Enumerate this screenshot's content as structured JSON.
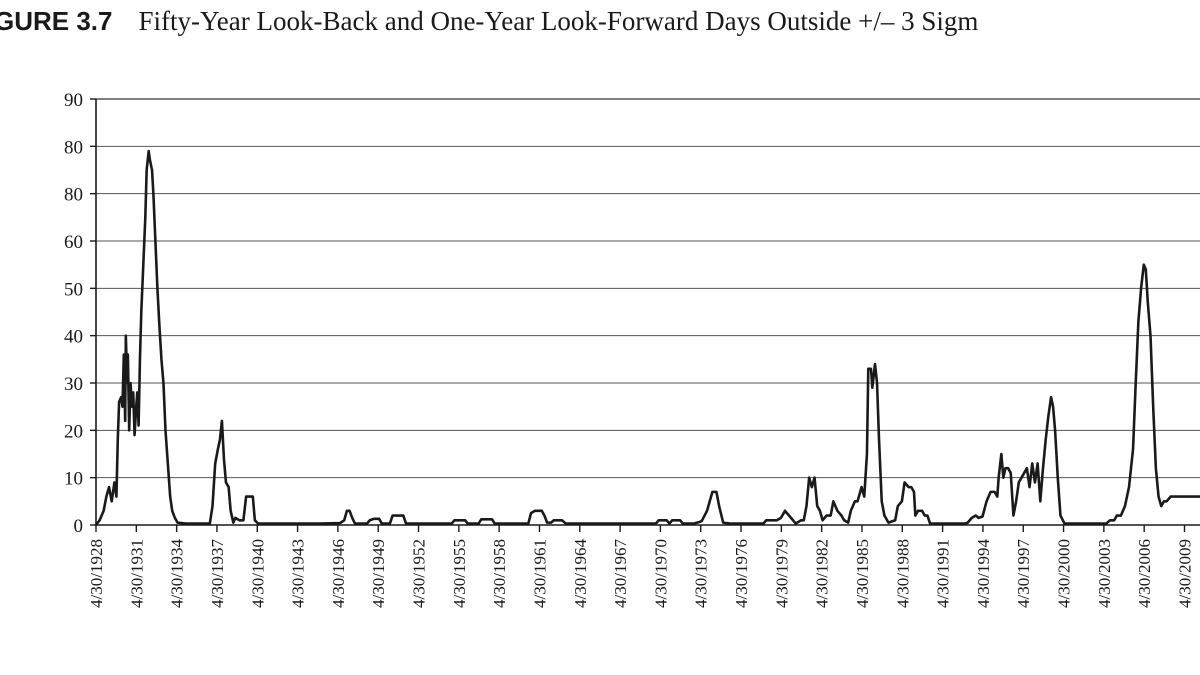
{
  "figure": {
    "label": "GURE 3.7",
    "caption": "Fifty-Year Look-Back and One-Year Look-Forward Days Outside +/– 3 Sigm"
  },
  "chart_data": {
    "type": "line",
    "title": "Fifty-Year Look-Back and One-Year Look-Forward Days Outside +/– 3 Sigm",
    "xlabel": "",
    "ylabel": "",
    "y_tick_labels": [
      "0",
      "10",
      "20",
      "30",
      "40",
      "50",
      "60",
      "80",
      "80",
      "90"
    ],
    "x_tick_labels": [
      "4/30/1928",
      "4/30/1931",
      "4/30/1934",
      "4/30/1937",
      "4/30/1940",
      "4/30/1943",
      "4/30/1946",
      "4/30/1949",
      "4/30/1952",
      "4/30/1955",
      "4/30/1958",
      "4/30/1961",
      "4/30/1964",
      "4/30/1967",
      "4/30/1970",
      "4/30/1973",
      "4/30/1976",
      "4/30/1979",
      "4/30/1982",
      "4/30/1985",
      "4/30/1988",
      "4/30/1991",
      "4/30/1994",
      "4/30/1997",
      "4/30/2000",
      "4/30/2003",
      "4/30/2006",
      "4/30/2009"
    ],
    "xlim": [
      1928.33,
      2011.6
    ],
    "ylim": [
      0,
      90
    ],
    "grid": "horizontal",
    "series": [
      {
        "points": [
          [
            1928.33,
            0
          ],
          [
            1928.6,
            1
          ],
          [
            1928.9,
            3
          ],
          [
            1929.1,
            6
          ],
          [
            1929.3,
            8
          ],
          [
            1929.5,
            5
          ],
          [
            1929.7,
            9
          ],
          [
            1929.85,
            6
          ],
          [
            1929.95,
            18
          ],
          [
            1930.05,
            26
          ],
          [
            1930.2,
            27
          ],
          [
            1930.3,
            25
          ],
          [
            1930.4,
            36
          ],
          [
            1930.5,
            22
          ],
          [
            1930.55,
            40
          ],
          [
            1930.65,
            30
          ],
          [
            1930.7,
            36
          ],
          [
            1930.8,
            20
          ],
          [
            1930.9,
            30
          ],
          [
            1931.0,
            25
          ],
          [
            1931.1,
            28
          ],
          [
            1931.2,
            19
          ],
          [
            1931.3,
            24
          ],
          [
            1931.4,
            28
          ],
          [
            1931.5,
            21
          ],
          [
            1931.6,
            35
          ],
          [
            1931.7,
            45
          ],
          [
            1931.85,
            55
          ],
          [
            1932.0,
            65
          ],
          [
            1932.1,
            75
          ],
          [
            1932.25,
            79
          ],
          [
            1932.35,
            77
          ],
          [
            1932.5,
            75
          ],
          [
            1932.6,
            70
          ],
          [
            1932.75,
            60
          ],
          [
            1932.9,
            50
          ],
          [
            1933.05,
            42
          ],
          [
            1933.2,
            35
          ],
          [
            1933.35,
            30
          ],
          [
            1933.5,
            20
          ],
          [
            1933.7,
            12
          ],
          [
            1933.85,
            6
          ],
          [
            1934.0,
            3
          ],
          [
            1934.2,
            1.5
          ],
          [
            1934.4,
            0.5
          ],
          [
            1935.0,
            0.3
          ],
          [
            1936.0,
            0.3
          ],
          [
            1936.8,
            0.3
          ],
          [
            1937.0,
            4
          ],
          [
            1937.2,
            13
          ],
          [
            1937.4,
            16
          ],
          [
            1937.55,
            18
          ],
          [
            1937.7,
            22
          ],
          [
            1937.85,
            14
          ],
          [
            1938.0,
            9
          ],
          [
            1938.2,
            8
          ],
          [
            1938.35,
            3
          ],
          [
            1938.55,
            0.5
          ],
          [
            1938.7,
            1.5
          ],
          [
            1939.0,
            1
          ],
          [
            1939.3,
            1
          ],
          [
            1939.5,
            6
          ],
          [
            1939.8,
            6
          ],
          [
            1940.0,
            6
          ],
          [
            1940.15,
            1
          ],
          [
            1940.4,
            0.3
          ],
          [
            1942.0,
            0.3
          ],
          [
            1945.0,
            0.3
          ],
          [
            1946.5,
            0.4
          ],
          [
            1946.8,
            1
          ],
          [
            1947.0,
            3
          ],
          [
            1947.2,
            3
          ],
          [
            1947.4,
            1.5
          ],
          [
            1947.6,
            0.3
          ],
          [
            1948.5,
            0.3
          ],
          [
            1948.7,
            1
          ],
          [
            1949.0,
            1.3
          ],
          [
            1949.4,
            1.3
          ],
          [
            1949.6,
            0.3
          ],
          [
            1950.2,
            0.3
          ],
          [
            1950.4,
            2
          ],
          [
            1950.7,
            2
          ],
          [
            1951.2,
            2
          ],
          [
            1951.4,
            0.3
          ],
          [
            1953.5,
            0.3
          ],
          [
            1954.8,
            0.3
          ],
          [
            1955.0,
            1
          ],
          [
            1955.8,
            1
          ],
          [
            1956.0,
            0.3
          ],
          [
            1956.8,
            0.3
          ],
          [
            1957.0,
            1.2
          ],
          [
            1957.8,
            1.2
          ],
          [
            1958.0,
            0.3
          ],
          [
            1960.5,
            0.3
          ],
          [
            1960.7,
            2.5
          ],
          [
            1961.0,
            3
          ],
          [
            1961.5,
            3
          ],
          [
            1961.7,
            2
          ],
          [
            1961.9,
            0.5
          ],
          [
            1962.2,
            0.5
          ],
          [
            1962.4,
            1
          ],
          [
            1963.0,
            1
          ],
          [
            1963.3,
            0.3
          ],
          [
            1968.0,
            0.3
          ],
          [
            1970.0,
            0.3
          ],
          [
            1970.2,
            1
          ],
          [
            1970.8,
            1
          ],
          [
            1971.0,
            0.3
          ],
          [
            1971.2,
            1
          ],
          [
            1971.8,
            1
          ],
          [
            1972.0,
            0.3
          ],
          [
            1972.8,
            0.3
          ],
          [
            1973.2,
            0.6
          ],
          [
            1973.4,
            0.8
          ],
          [
            1973.8,
            3
          ],
          [
            1974.0,
            5
          ],
          [
            1974.2,
            7
          ],
          [
            1974.5,
            7
          ],
          [
            1974.7,
            4
          ],
          [
            1975.0,
            0.5
          ],
          [
            1975.5,
            0.3
          ],
          [
            1978.0,
            0.3
          ],
          [
            1978.2,
            1
          ],
          [
            1978.8,
            1
          ],
          [
            1979.0,
            1
          ],
          [
            1979.3,
            1.5
          ],
          [
            1979.6,
            3
          ],
          [
            1979.9,
            2
          ],
          [
            1980.2,
            1
          ],
          [
            1980.4,
            0.3
          ],
          [
            1980.8,
            1
          ],
          [
            1981.0,
            1
          ],
          [
            1981.2,
            4
          ],
          [
            1981.4,
            10
          ],
          [
            1981.6,
            8
          ],
          [
            1981.8,
            10
          ],
          [
            1982.0,
            4
          ],
          [
            1982.2,
            3
          ],
          [
            1982.4,
            1
          ],
          [
            1982.7,
            2
          ],
          [
            1983.0,
            2
          ],
          [
            1983.2,
            5
          ],
          [
            1983.5,
            3
          ],
          [
            1983.8,
            2
          ],
          [
            1984.0,
            1
          ],
          [
            1984.3,
            0.5
          ],
          [
            1984.5,
            3
          ],
          [
            1984.8,
            5
          ],
          [
            1985.0,
            5
          ],
          [
            1985.3,
            8
          ],
          [
            1985.5,
            6
          ],
          [
            1985.7,
            15
          ],
          [
            1985.8,
            33
          ],
          [
            1986.0,
            33
          ],
          [
            1986.1,
            29
          ],
          [
            1986.3,
            34
          ],
          [
            1986.45,
            30
          ],
          [
            1986.6,
            18
          ],
          [
            1986.8,
            5
          ],
          [
            1987.0,
            2
          ],
          [
            1987.3,
            0.5
          ],
          [
            1987.8,
            1
          ],
          [
            1988.0,
            4
          ],
          [
            1988.3,
            5
          ],
          [
            1988.5,
            9
          ],
          [
            1988.8,
            8
          ],
          [
            1989.0,
            8
          ],
          [
            1989.2,
            7
          ],
          [
            1989.3,
            2
          ],
          [
            1989.5,
            3
          ],
          [
            1989.8,
            3
          ],
          [
            1990.0,
            2
          ],
          [
            1990.2,
            2
          ],
          [
            1990.4,
            0.3
          ],
          [
            1993.0,
            0.3
          ],
          [
            1993.2,
            0.5
          ],
          [
            1993.5,
            1.5
          ],
          [
            1993.8,
            2
          ],
          [
            1994.0,
            1.5
          ],
          [
            1994.3,
            1.8
          ],
          [
            1994.6,
            5
          ],
          [
            1994.9,
            7
          ],
          [
            1995.2,
            7
          ],
          [
            1995.4,
            6
          ],
          [
            1995.5,
            10
          ],
          [
            1995.7,
            15
          ],
          [
            1995.85,
            10
          ],
          [
            1996.0,
            12
          ],
          [
            1996.2,
            12
          ],
          [
            1996.4,
            11
          ],
          [
            1996.6,
            2
          ],
          [
            1996.8,
            5
          ],
          [
            1997.0,
            9
          ],
          [
            1997.2,
            10
          ],
          [
            1997.4,
            11
          ],
          [
            1997.6,
            12
          ],
          [
            1997.8,
            8
          ],
          [
            1998.0,
            13
          ],
          [
            1998.2,
            9
          ],
          [
            1998.4,
            13
          ],
          [
            1998.6,
            5
          ],
          [
            1998.8,
            12
          ],
          [
            1999.0,
            18
          ],
          [
            1999.2,
            23
          ],
          [
            1999.4,
            27
          ],
          [
            1999.55,
            25
          ],
          [
            1999.7,
            20
          ],
          [
            1999.9,
            10
          ],
          [
            2000.1,
            2
          ],
          [
            2000.4,
            0.3
          ],
          [
            2001.5,
            0.3
          ],
          [
            2003.5,
            0.3
          ],
          [
            2003.8,
            1
          ],
          [
            2004.1,
            1
          ],
          [
            2004.3,
            2
          ],
          [
            2004.6,
            2
          ],
          [
            2004.9,
            4
          ],
          [
            2005.2,
            8
          ],
          [
            2005.5,
            16
          ],
          [
            2005.7,
            30
          ],
          [
            2005.9,
            43
          ],
          [
            2006.1,
            50
          ],
          [
            2006.3,
            55
          ],
          [
            2006.45,
            54
          ],
          [
            2006.6,
            47
          ],
          [
            2006.8,
            40
          ],
          [
            2007.0,
            25
          ],
          [
            2007.2,
            12
          ],
          [
            2007.4,
            6
          ],
          [
            2007.6,
            4
          ],
          [
            2007.8,
            5
          ],
          [
            2008.0,
            5
          ],
          [
            2008.3,
            6
          ],
          [
            2011.6,
            6
          ]
        ]
      }
    ]
  }
}
